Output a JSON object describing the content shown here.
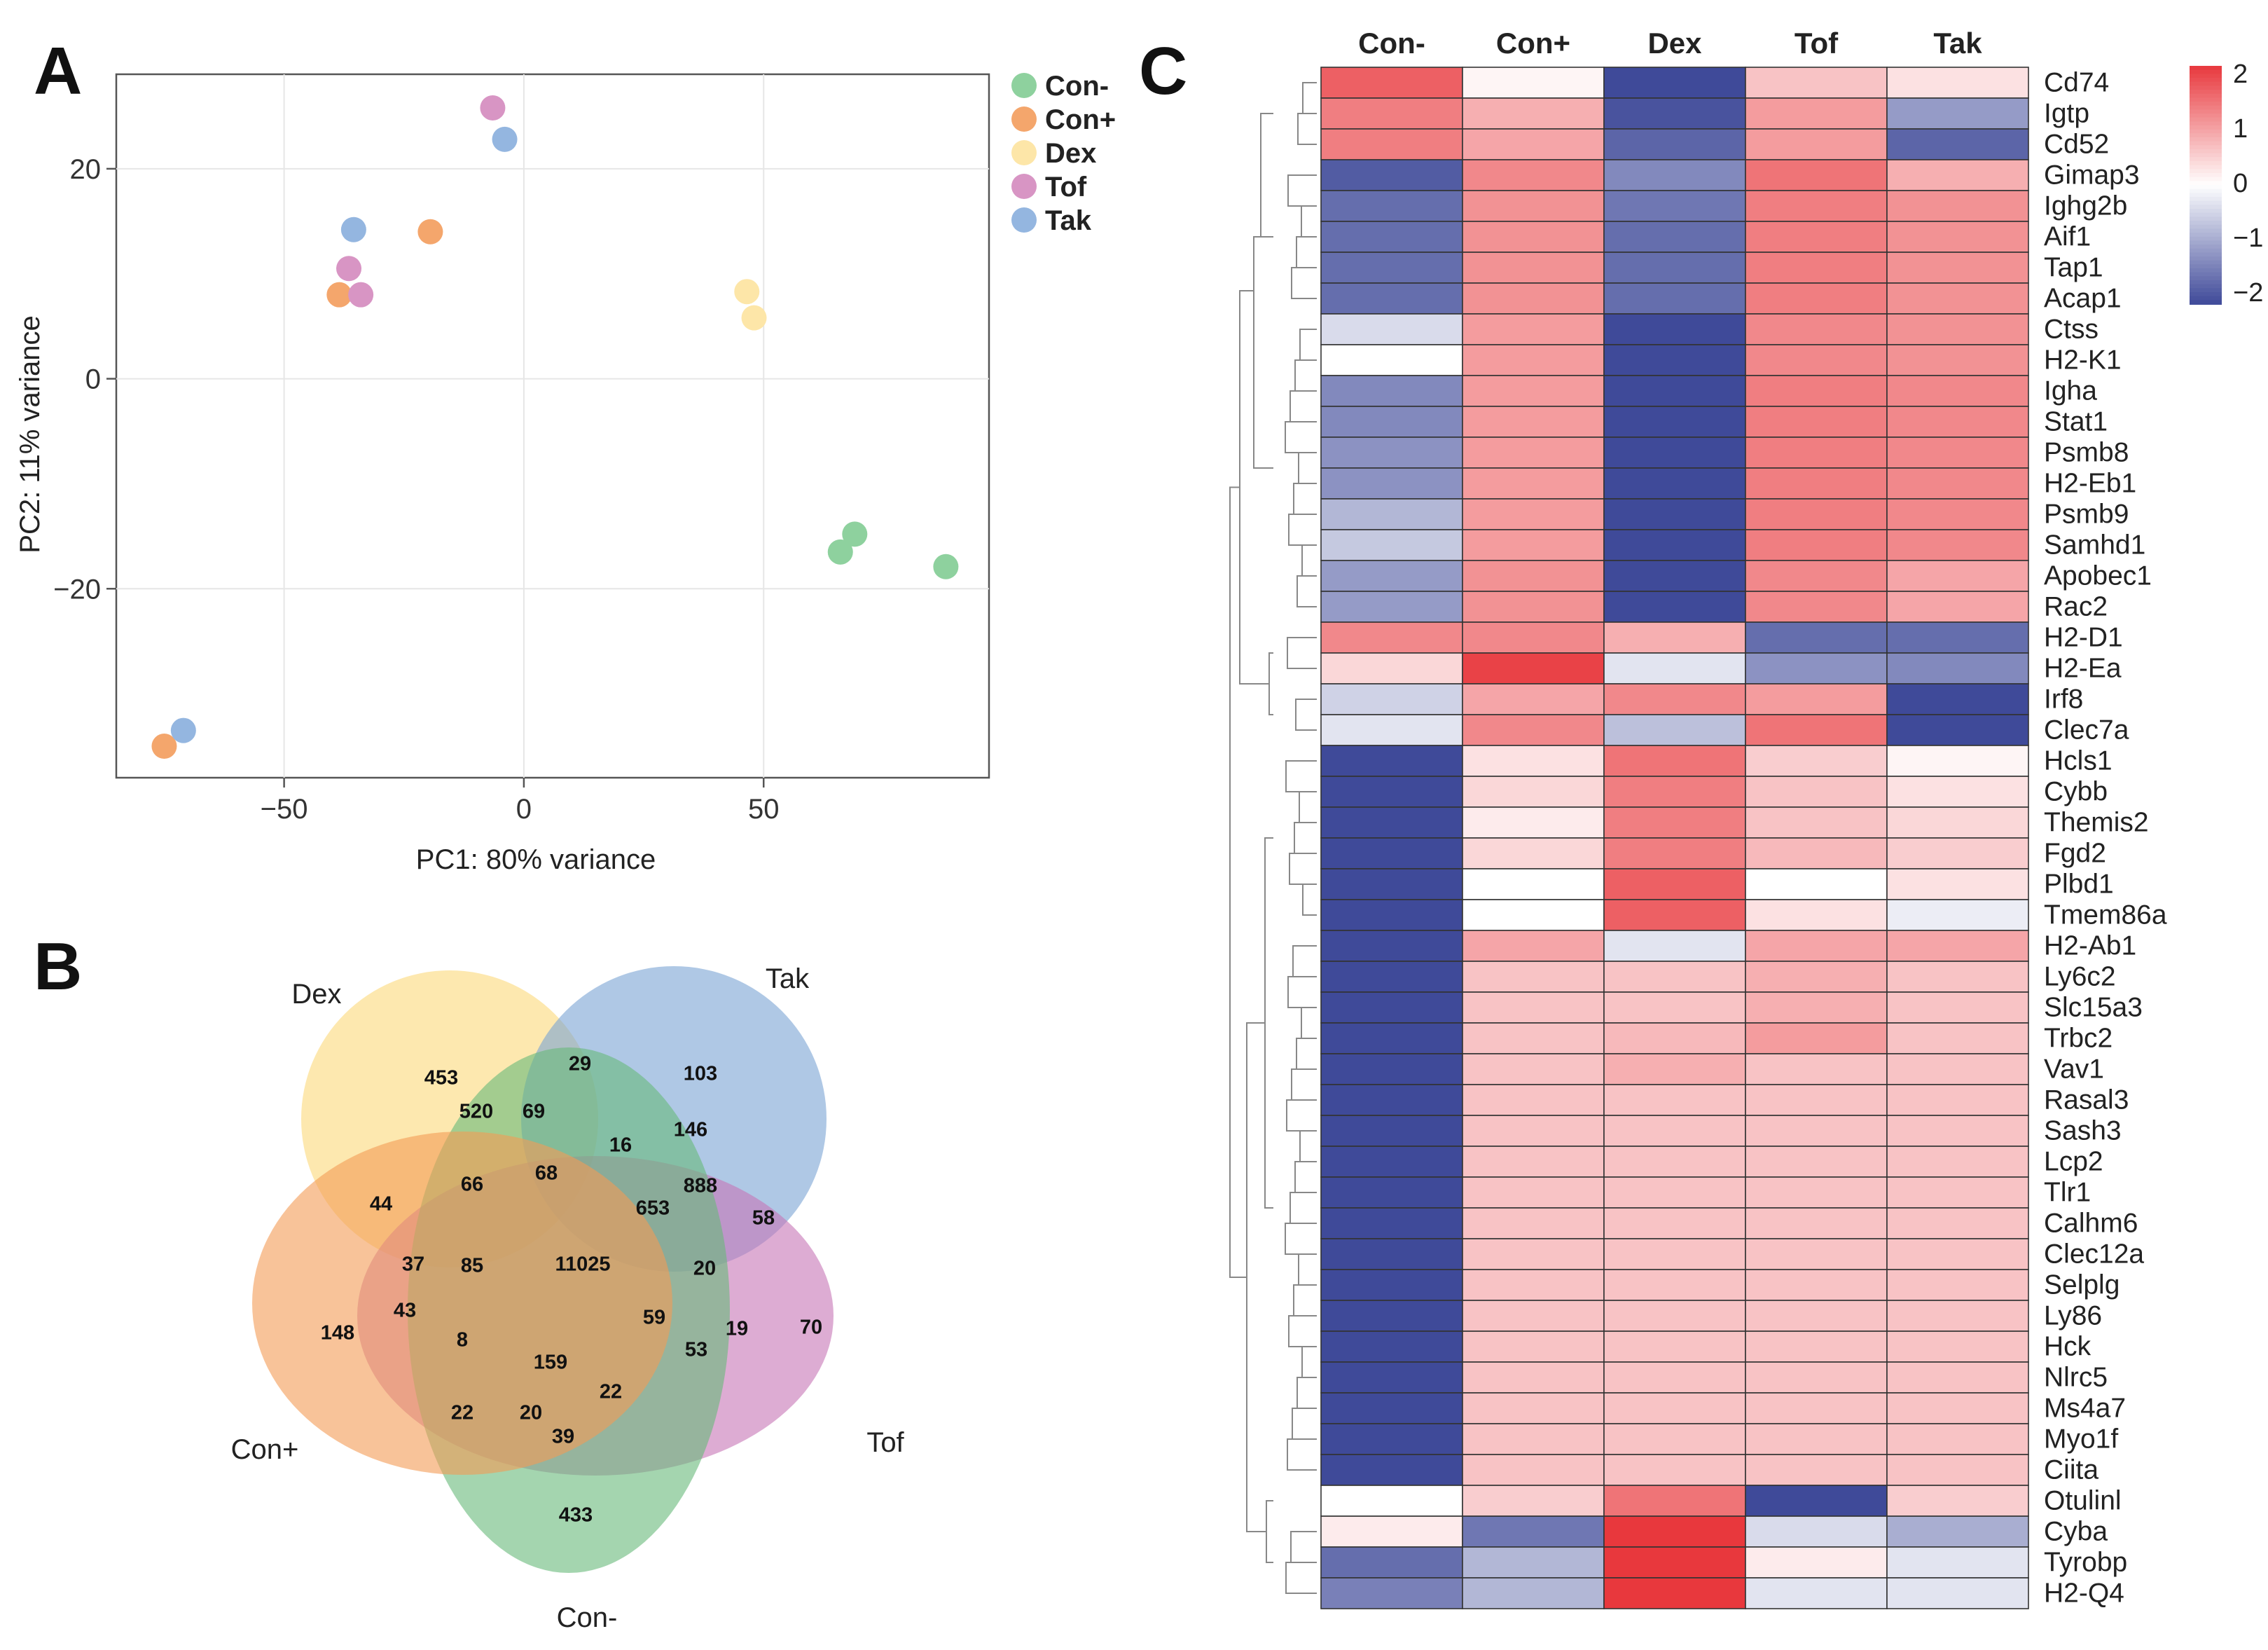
{
  "panels": {
    "a": "A",
    "b": "B",
    "c": "C"
  },
  "pca": {
    "type": "scatter",
    "xlabel": "PC1: 80% variance",
    "ylabel": "PC2: 11% variance",
    "xlim": [
      -85,
      97
    ],
    "ylim": [
      -38,
      29
    ],
    "xticks": [
      -50,
      0,
      50
    ],
    "yticks": [
      -20,
      0,
      20
    ],
    "xtick_labels": [
      "−50",
      "0",
      "50"
    ],
    "ytick_labels": [
      "−20",
      "0",
      "20"
    ],
    "grid": true,
    "legend_position": "outside-right",
    "groups": [
      {
        "name": "Con-",
        "color": "#8ed19e",
        "points": [
          [
            66,
            -16.5
          ],
          [
            69,
            -14.8
          ],
          [
            88,
            -17.9
          ]
        ]
      },
      {
        "name": "Con+",
        "color": "#f4a66c",
        "points": [
          [
            -19.5,
            14
          ],
          [
            -38.5,
            8
          ],
          [
            -75,
            -35
          ]
        ]
      },
      {
        "name": "Dex",
        "color": "#fde6a8",
        "points": [
          [
            46.5,
            8.3
          ],
          [
            48,
            5.8
          ]
        ]
      },
      {
        "name": "Tof",
        "color": "#d895c4",
        "points": [
          [
            -6.5,
            25.8
          ],
          [
            -36.5,
            10.5
          ],
          [
            -34,
            8
          ]
        ]
      },
      {
        "name": "Tak",
        "color": "#94b6e0",
        "points": [
          [
            -4,
            22.8
          ],
          [
            -35.5,
            14.2
          ],
          [
            -71,
            -33.5
          ]
        ]
      }
    ]
  },
  "venn": {
    "sets": [
      {
        "name": "Dex",
        "color": "#fbd97a"
      },
      {
        "name": "Tak",
        "color": "#7aa4d4"
      },
      {
        "name": "Tof",
        "color": "#c774b6"
      },
      {
        "name": "Con-",
        "color": "#67b979"
      },
      {
        "name": "Con+",
        "color": "#f49b55"
      }
    ],
    "counts": [
      "453",
      "29",
      "103",
      "520",
      "69",
      "146",
      "16",
      "888",
      "68",
      "66",
      "44",
      "653",
      "58",
      "37",
      "85",
      "11025",
      "20",
      "70",
      "43",
      "59",
      "19",
      "148",
      "8",
      "53",
      "159",
      "22",
      "20",
      "22",
      "39",
      "433"
    ]
  },
  "heatmap": {
    "columns": [
      "Con-",
      "Con+",
      "Dex",
      "Tof",
      "Tak"
    ],
    "genes": [
      "Cd74",
      "Igtp",
      "Cd52",
      "Gimap3",
      "Ighg2b",
      "Aif1",
      "Tap1",
      "Acap1",
      "Ctss",
      "H2-K1",
      "Igha",
      "Stat1",
      "Psmb8",
      "H2-Eb1",
      "Psmb9",
      "Samhd1",
      "Apobec1",
      "Rac2",
      "H2-D1",
      "H2-Ea",
      "Irf8",
      "Clec7a",
      "Hcls1",
      "Cybb",
      "Themis2",
      "Fgd2",
      "Plbd1",
      "Tmem86a",
      "H2-Ab1",
      "Ly6c2",
      "Slc15a3",
      "Trbc2",
      "Vav1",
      "Rasal3",
      "Sash3",
      "Lcp2",
      "Tlr1",
      "Calhm6",
      "Clec12a",
      "Selplg",
      "Ly86",
      "Hck",
      "Nlrc5",
      "Ms4a7",
      "Myo1f",
      "Ciita",
      "Otulinl",
      "Cyba",
      "Tyrobp",
      "H2-Q4"
    ],
    "values": [
      [
        1.6,
        0.1,
        -2.0,
        0.6,
        0.3
      ],
      [
        1.3,
        0.8,
        -1.9,
        1.0,
        -1.1
      ],
      [
        1.3,
        0.9,
        -1.7,
        1.0,
        -1.7
      ],
      [
        -1.8,
        1.2,
        -1.3,
        1.4,
        0.8
      ],
      [
        -1.6,
        1.1,
        -1.5,
        1.3,
        1.1
      ],
      [
        -1.6,
        1.1,
        -1.6,
        1.3,
        1.1
      ],
      [
        -1.6,
        1.1,
        -1.6,
        1.3,
        1.1
      ],
      [
        -1.6,
        1.1,
        -1.6,
        1.3,
        1.1
      ],
      [
        -0.4,
        1.0,
        -2.0,
        1.2,
        1.1
      ],
      [
        0.0,
        1.0,
        -2.0,
        1.2,
        1.1
      ],
      [
        -1.3,
        1.0,
        -2.0,
        1.3,
        1.2
      ],
      [
        -1.3,
        1.0,
        -2.0,
        1.3,
        1.2
      ],
      [
        -1.2,
        1.0,
        -2.0,
        1.3,
        1.2
      ],
      [
        -1.2,
        1.0,
        -2.0,
        1.3,
        1.2
      ],
      [
        -0.8,
        1.0,
        -2.0,
        1.3,
        1.2
      ],
      [
        -0.6,
        1.0,
        -2.0,
        1.3,
        1.2
      ],
      [
        -1.1,
        1.1,
        -2.0,
        1.2,
        0.9
      ],
      [
        -1.1,
        1.1,
        -2.0,
        1.2,
        0.9
      ],
      [
        1.2,
        1.2,
        0.8,
        -1.6,
        -1.6
      ],
      [
        0.4,
        1.9,
        -0.3,
        -1.2,
        -1.3
      ],
      [
        -0.5,
        0.9,
        1.2,
        1.0,
        -2.0
      ],
      [
        -0.3,
        1.2,
        -0.7,
        1.4,
        -2.0
      ],
      [
        -2.0,
        0.3,
        1.4,
        0.5,
        0.1
      ],
      [
        -2.0,
        0.4,
        1.3,
        0.6,
        0.3
      ],
      [
        -2.0,
        0.2,
        1.3,
        0.6,
        0.4
      ],
      [
        -2.0,
        0.4,
        1.3,
        0.7,
        0.5
      ],
      [
        -2.0,
        0.0,
        1.6,
        0.0,
        0.3
      ],
      [
        -2.0,
        0.0,
        1.6,
        0.3,
        -0.2
      ],
      [
        -2.0,
        0.9,
        -0.3,
        0.9,
        0.9
      ],
      [
        -2.0,
        0.6,
        0.6,
        0.8,
        0.6
      ],
      [
        -2.0,
        0.6,
        0.6,
        0.8,
        0.6
      ],
      [
        -2.0,
        0.6,
        0.7,
        1.0,
        0.6
      ],
      [
        -2.0,
        0.6,
        0.8,
        0.6,
        0.6
      ],
      [
        -2.0,
        0.6,
        0.6,
        0.6,
        0.6
      ],
      [
        -2.0,
        0.6,
        0.6,
        0.6,
        0.6
      ],
      [
        -2.0,
        0.6,
        0.6,
        0.6,
        0.6
      ],
      [
        -2.0,
        0.6,
        0.6,
        0.6,
        0.6
      ],
      [
        -2.0,
        0.6,
        0.6,
        0.6,
        0.6
      ],
      [
        -2.0,
        0.6,
        0.6,
        0.6,
        0.6
      ],
      [
        -2.0,
        0.6,
        0.6,
        0.6,
        0.6
      ],
      [
        -2.0,
        0.6,
        0.6,
        0.6,
        0.6
      ],
      [
        -2.0,
        0.6,
        0.6,
        0.6,
        0.6
      ],
      [
        -2.0,
        0.6,
        0.6,
        0.6,
        0.6
      ],
      [
        -2.0,
        0.6,
        0.6,
        0.6,
        0.6
      ],
      [
        -2.0,
        0.6,
        0.6,
        0.6,
        0.6
      ],
      [
        -2.0,
        0.6,
        0.6,
        0.6,
        0.6
      ],
      [
        0.0,
        0.5,
        1.4,
        -2.0,
        0.5
      ],
      [
        0.2,
        -1.5,
        2.0,
        -0.4,
        -0.9
      ],
      [
        -1.6,
        -0.8,
        2.0,
        0.2,
        -0.3
      ],
      [
        -1.4,
        -0.8,
        2.0,
        -0.3,
        -0.3
      ]
    ],
    "colorbar": {
      "range": [
        -2,
        2
      ],
      "tick_labels": [
        "2",
        "1",
        "0",
        "−1",
        "−2"
      ],
      "low_color": "#3f4a99",
      "mid_color": "#ffffff",
      "high_color": "#e8383d"
    }
  }
}
